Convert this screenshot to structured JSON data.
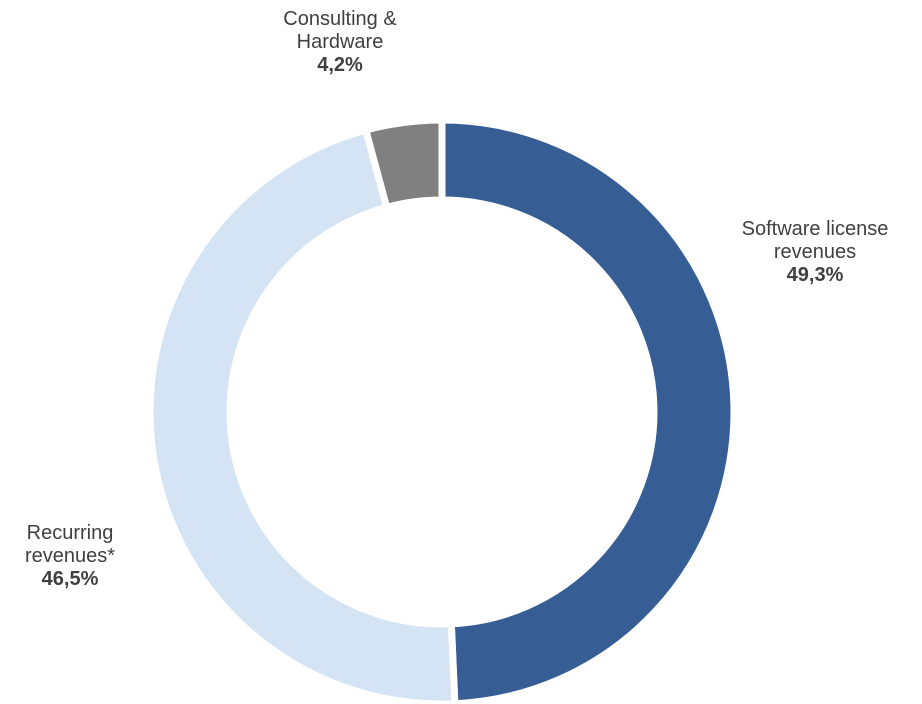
{
  "chart_data": {
    "type": "donut",
    "categories": [
      "Software license revenues",
      "Recurring revenues*",
      "Consulting & Hardware"
    ],
    "values": [
      49.3,
      46.5,
      4.2
    ],
    "value_labels": [
      "49,3%",
      "46,5%",
      "4,2%"
    ],
    "colors": [
      "#375e94",
      "#d5e4f5",
      "#808080"
    ]
  }
}
